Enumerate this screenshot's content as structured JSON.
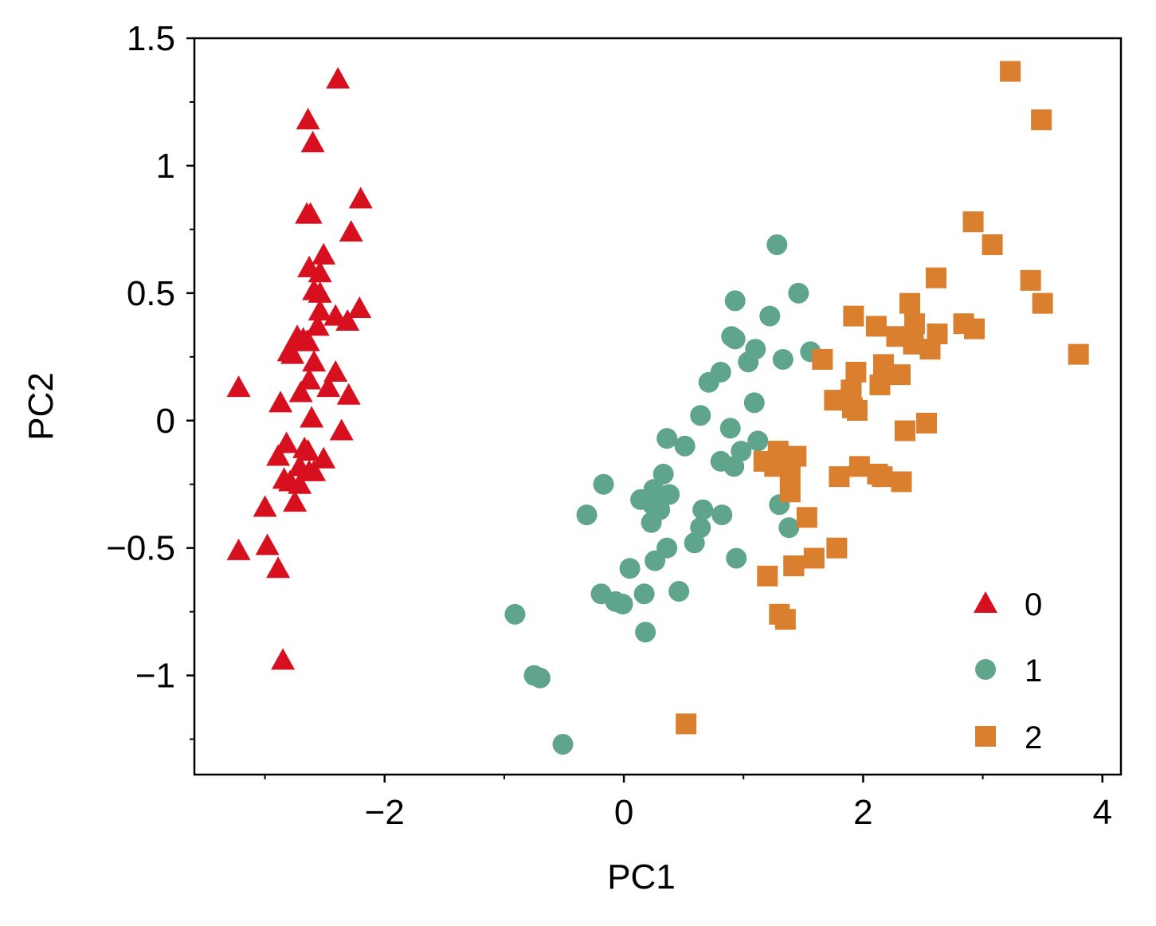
{
  "chart_data": {
    "type": "scatter",
    "xlabel": "PC1",
    "ylabel": "PC2",
    "xlim": [
      -3.59,
      4.155
    ],
    "ylim": [
      -1.389,
      1.5
    ],
    "xticks": [
      {
        "v": -2,
        "label": "−2"
      },
      {
        "v": 0,
        "label": "0"
      },
      {
        "v": 2,
        "label": "2"
      },
      {
        "v": 4,
        "label": "4"
      }
    ],
    "xminor": [
      -3,
      -1,
      1,
      3
    ],
    "yticks": [
      {
        "v": 1.5,
        "label": "1.5"
      },
      {
        "v": 1,
        "label": "1"
      },
      {
        "v": 0.5,
        "label": "0.5"
      },
      {
        "v": 0,
        "label": "0"
      },
      {
        "v": -0.5,
        "label": "−0.5"
      },
      {
        "v": -1,
        "label": "−1"
      }
    ],
    "yminor": [
      1.25,
      0.75,
      0.25,
      -0.25,
      -0.75,
      -1.25
    ],
    "grid": false,
    "legend_position": "bottom-right",
    "series": [
      {
        "name": "0",
        "marker": "triangle",
        "color": "#d7101f",
        "points": [
          [
            -2.68,
            0.32
          ],
          [
            -2.71,
            -0.18
          ],
          [
            -2.89,
            -0.14
          ],
          [
            -2.75,
            -0.32
          ],
          [
            -2.73,
            0.33
          ],
          [
            -2.28,
            0.74
          ],
          [
            -2.82,
            -0.09
          ],
          [
            -2.63,
            0.16
          ],
          [
            -2.89,
            -0.58
          ],
          [
            -2.67,
            -0.11
          ],
          [
            -2.51,
            0.65
          ],
          [
            -2.61,
            0.01
          ],
          [
            -2.79,
            -0.24
          ],
          [
            -3.22,
            -0.51
          ],
          [
            -2.64,
            1.18
          ],
          [
            -2.39,
            1.34
          ],
          [
            -2.62,
            0.81
          ],
          [
            -2.65,
            0.31
          ],
          [
            -2.2,
            0.87
          ],
          [
            -2.59,
            0.51
          ],
          [
            -2.31,
            0.39
          ],
          [
            -2.54,
            0.43
          ],
          [
            -3.22,
            0.13
          ],
          [
            -2.3,
            0.1
          ],
          [
            -2.36,
            -0.04
          ],
          [
            -2.51,
            -0.15
          ],
          [
            -2.47,
            0.13
          ],
          [
            -2.56,
            0.37
          ],
          [
            -2.64,
            0.31
          ],
          [
            -2.63,
            -0.2
          ],
          [
            -2.59,
            -0.2
          ],
          [
            -2.41,
            0.41
          ],
          [
            -2.65,
            0.81
          ],
          [
            -2.6,
            1.09
          ],
          [
            -2.64,
            -0.12
          ],
          [
            -2.87,
            0.07
          ],
          [
            -2.63,
            0.6
          ],
          [
            -2.8,
            0.27
          ],
          [
            -2.98,
            -0.49
          ],
          [
            -2.59,
            0.23
          ],
          [
            -2.77,
            0.26
          ],
          [
            -2.85,
            -0.94
          ],
          [
            -3.0,
            -0.34
          ],
          [
            -2.41,
            0.19
          ],
          [
            -2.21,
            0.44
          ],
          [
            -2.71,
            -0.25
          ],
          [
            -2.54,
            0.5
          ],
          [
            -2.84,
            -0.23
          ],
          [
            -2.54,
            0.58
          ],
          [
            -2.7,
            0.11
          ]
        ]
      },
      {
        "name": "1",
        "marker": "circle",
        "color": "#5fa58b",
        "points": [
          [
            1.28,
            0.69
          ],
          [
            0.93,
            0.32
          ],
          [
            1.46,
            0.5
          ],
          [
            0.18,
            -0.83
          ],
          [
            1.09,
            0.07
          ],
          [
            0.64,
            -0.42
          ],
          [
            1.1,
            0.28
          ],
          [
            -0.75,
            -1.0
          ],
          [
            1.04,
            0.23
          ],
          [
            -0.01,
            -0.72
          ],
          [
            -0.51,
            -1.27
          ],
          [
            0.51,
            -0.1
          ],
          [
            0.26,
            -0.55
          ],
          [
            0.98,
            -0.12
          ],
          [
            -0.17,
            -0.25
          ],
          [
            0.93,
            0.47
          ],
          [
            0.66,
            -0.35
          ],
          [
            0.24,
            -0.33
          ],
          [
            0.94,
            -0.54
          ],
          [
            0.05,
            -0.58
          ],
          [
            1.12,
            -0.08
          ],
          [
            0.36,
            -0.07
          ],
          [
            1.3,
            -0.33
          ],
          [
            0.92,
            -0.18
          ],
          [
            0.71,
            0.15
          ],
          [
            0.9,
            0.33
          ],
          [
            1.33,
            0.24
          ],
          [
            1.56,
            0.27
          ],
          [
            0.81,
            -0.16
          ],
          [
            -0.31,
            -0.37
          ],
          [
            -0.07,
            -0.71
          ],
          [
            -0.19,
            -0.68
          ],
          [
            0.14,
            -0.31
          ],
          [
            1.38,
            -0.42
          ],
          [
            0.59,
            -0.48
          ],
          [
            0.81,
            0.19
          ],
          [
            1.22,
            0.41
          ],
          [
            0.82,
            -0.37
          ],
          [
            0.25,
            -0.27
          ],
          [
            0.17,
            -0.68
          ],
          [
            0.46,
            -0.67
          ],
          [
            0.89,
            -0.03
          ],
          [
            0.23,
            -0.4
          ],
          [
            -0.7,
            -1.01
          ],
          [
            0.36,
            -0.5
          ],
          [
            0.33,
            -0.21
          ],
          [
            0.38,
            -0.29
          ],
          [
            0.64,
            0.02
          ],
          [
            -0.91,
            -0.76
          ],
          [
            0.3,
            -0.35
          ]
        ]
      },
      {
        "name": "2",
        "marker": "square",
        "color": "#d97f2e",
        "points": [
          [
            2.53,
            -0.01
          ],
          [
            1.42,
            -0.57
          ],
          [
            2.62,
            0.34
          ],
          [
            1.97,
            -0.18
          ],
          [
            2.35,
            -0.04
          ],
          [
            3.4,
            0.55
          ],
          [
            0.52,
            -1.19
          ],
          [
            2.93,
            0.36
          ],
          [
            2.32,
            -0.24
          ],
          [
            2.92,
            0.78
          ],
          [
            1.66,
            0.24
          ],
          [
            1.8,
            -0.22
          ],
          [
            2.17,
            0.22
          ],
          [
            1.35,
            -0.78
          ],
          [
            1.59,
            -0.54
          ],
          [
            1.9,
            0.12
          ],
          [
            1.95,
            0.04
          ],
          [
            3.49,
            1.18
          ],
          [
            3.8,
            0.26
          ],
          [
            1.3,
            -0.76
          ],
          [
            2.43,
            0.38
          ],
          [
            1.2,
            -0.61
          ],
          [
            3.5,
            0.46
          ],
          [
            1.39,
            -0.2
          ],
          [
            2.28,
            0.33
          ],
          [
            2.61,
            0.56
          ],
          [
            1.26,
            -0.18
          ],
          [
            1.29,
            -0.12
          ],
          [
            2.12,
            -0.21
          ],
          [
            2.39,
            0.46
          ],
          [
            2.84,
            0.38
          ],
          [
            3.23,
            1.37
          ],
          [
            2.16,
            -0.22
          ],
          [
            1.44,
            -0.14
          ],
          [
            1.78,
            -0.5
          ],
          [
            3.08,
            0.69
          ],
          [
            2.14,
            0.14
          ],
          [
            1.91,
            0.05
          ],
          [
            1.17,
            -0.16
          ],
          [
            2.11,
            0.37
          ],
          [
            2.31,
            0.18
          ],
          [
            1.92,
            0.41
          ],
          [
            1.42,
            -0.57
          ],
          [
            2.56,
            0.28
          ],
          [
            2.42,
            0.3
          ],
          [
            1.94,
            0.19
          ],
          [
            1.53,
            -0.38
          ],
          [
            1.76,
            0.08
          ],
          [
            1.9,
            0.12
          ],
          [
            1.39,
            -0.28
          ]
        ]
      }
    ]
  }
}
